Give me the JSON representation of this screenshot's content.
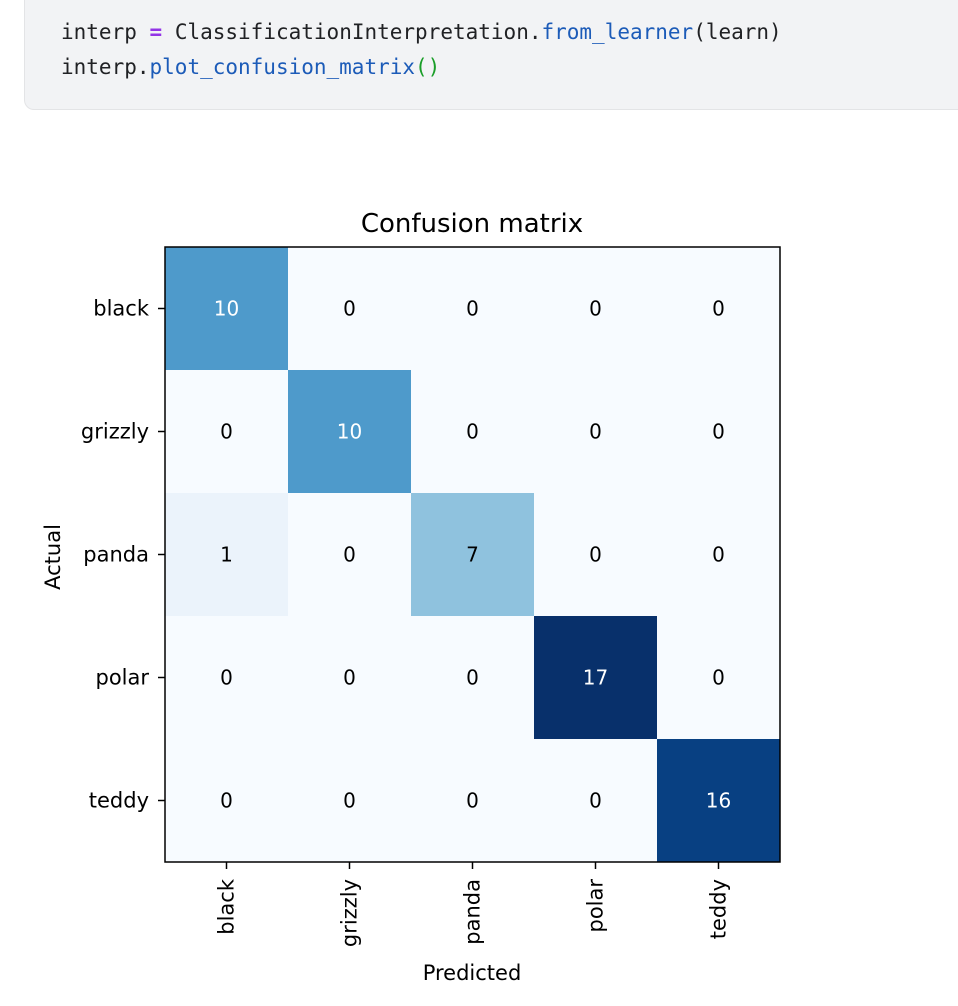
{
  "code": {
    "line1": {
      "var": "interp",
      "op": "=",
      "cls": "ClassificationInterpretation.",
      "method": "from_learner",
      "args": "(learn)"
    },
    "line2": {
      "obj": "interp.",
      "method": "plot_confusion_matrix",
      "parens": "()"
    }
  },
  "chart_data": {
    "type": "heatmap",
    "title": "Confusion matrix",
    "xlabel": "Predicted",
    "ylabel": "Actual",
    "x_categories": [
      "black",
      "grizzly",
      "panda",
      "polar",
      "teddy"
    ],
    "y_categories": [
      "black",
      "grizzly",
      "panda",
      "polar",
      "teddy"
    ],
    "values": [
      [
        10,
        0,
        0,
        0,
        0
      ],
      [
        0,
        10,
        0,
        0,
        0
      ],
      [
        1,
        0,
        7,
        0,
        0
      ],
      [
        0,
        0,
        0,
        17,
        0
      ],
      [
        0,
        0,
        0,
        0,
        16
      ]
    ],
    "colormap": "Blues",
    "vmin": 0,
    "vmax": 17
  }
}
